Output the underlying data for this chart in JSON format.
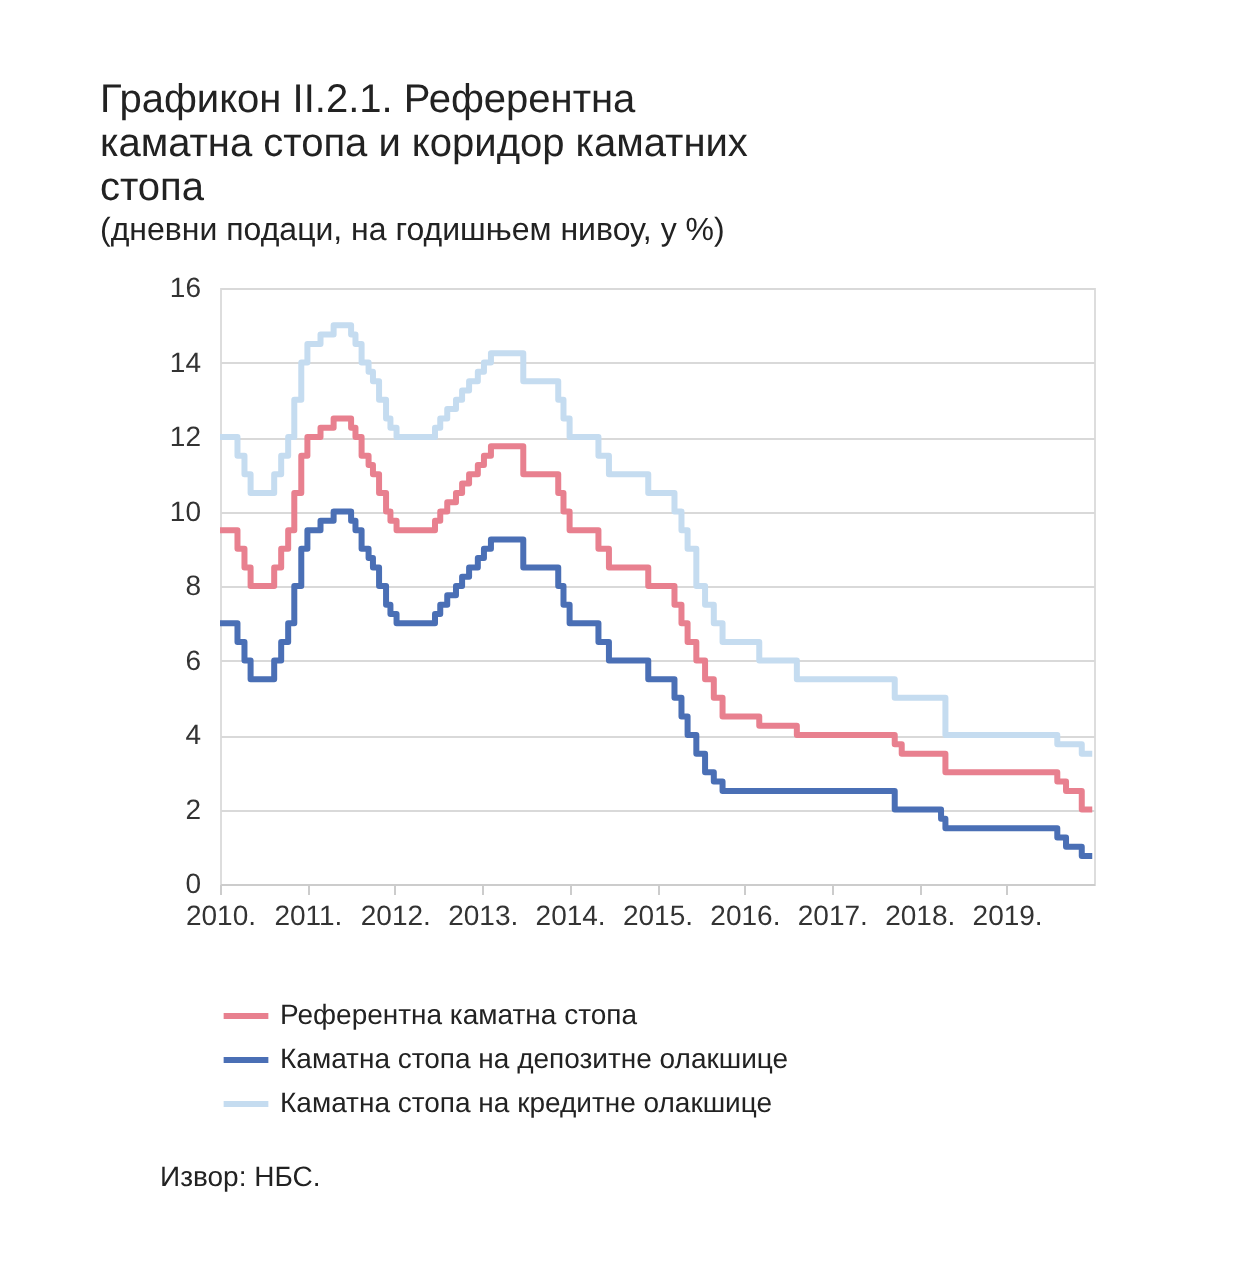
{
  "chart_data": {
    "type": "step",
    "title": "Графикон II.2.1. Референтна каматна стопа и коридор каматних стопа",
    "subtitle": "(дневни подаци, на годишњем нивоу, у %)",
    "x": [
      2010.0,
      2010.2,
      2010.28,
      2010.35,
      2010.62,
      2010.7,
      2010.78,
      2010.85,
      2010.93,
      2011.0,
      2011.15,
      2011.3,
      2011.5,
      2011.55,
      2011.62,
      2011.7,
      2011.75,
      2011.82,
      2011.9,
      2011.95,
      2012.02,
      2012.46,
      2012.52,
      2012.6,
      2012.7,
      2012.77,
      2012.85,
      2012.95,
      2013.02,
      2013.1,
      2013.47,
      2013.87,
      2013.93,
      2014.0,
      2014.33,
      2014.45,
      2014.9,
      2015.2,
      2015.28,
      2015.35,
      2015.45,
      2015.55,
      2015.65,
      2015.75,
      2016.17,
      2016.6,
      2017.72,
      2017.8,
      2018.25,
      2018.3,
      2019.58,
      2019.68,
      2019.86,
      2019.98
    ],
    "series": [
      {
        "name": "Референтна каматна стопа",
        "color": "#e8808f",
        "values": [
          9.5,
          9.0,
          8.5,
          8.0,
          8.5,
          9.0,
          9.5,
          10.5,
          11.5,
          12.0,
          12.25,
          12.5,
          12.25,
          12.0,
          11.5,
          11.25,
          11.0,
          10.5,
          10.0,
          9.75,
          9.5,
          9.75,
          10.0,
          10.25,
          10.5,
          10.75,
          11.0,
          11.25,
          11.5,
          11.75,
          11.0,
          10.5,
          10.0,
          9.5,
          9.0,
          8.5,
          8.0,
          7.5,
          7.0,
          6.5,
          6.0,
          5.5,
          5.0,
          4.5,
          4.25,
          4.0,
          3.75,
          3.5,
          3.5,
          3.0,
          2.75,
          2.5,
          2.0,
          2.0
        ]
      },
      {
        "name": "Каматна стопа на депозитне олакшице",
        "color": "#4a6fb5",
        "values": [
          7.0,
          6.5,
          6.0,
          5.5,
          6.0,
          6.5,
          7.0,
          8.0,
          9.0,
          9.5,
          9.75,
          10.0,
          9.75,
          9.5,
          9.0,
          8.75,
          8.5,
          8.0,
          7.5,
          7.25,
          7.0,
          7.25,
          7.5,
          7.75,
          8.0,
          8.25,
          8.5,
          8.75,
          9.0,
          9.25,
          8.5,
          8.0,
          7.5,
          7.0,
          6.5,
          6.0,
          5.5,
          5.0,
          4.5,
          4.0,
          3.5,
          3.0,
          2.75,
          2.5,
          2.5,
          2.5,
          2.0,
          2.0,
          1.75,
          1.5,
          1.25,
          1.0,
          0.75,
          0.75
        ]
      },
      {
        "name": "Каматна стопа на кредитне олакшице",
        "color": "#c5dcf0",
        "values": [
          12.0,
          11.5,
          11.0,
          10.5,
          11.0,
          11.5,
          12.0,
          13.0,
          14.0,
          14.5,
          14.75,
          15.0,
          14.75,
          14.5,
          14.0,
          13.75,
          13.5,
          13.0,
          12.5,
          12.25,
          12.0,
          12.25,
          12.5,
          12.75,
          13.0,
          13.25,
          13.5,
          13.75,
          14.0,
          14.25,
          13.5,
          13.0,
          12.5,
          12.0,
          11.5,
          11.0,
          10.5,
          10.0,
          9.5,
          9.0,
          8.0,
          7.5,
          7.0,
          6.5,
          6.0,
          5.5,
          5.0,
          5.0,
          5.0,
          4.0,
          3.75,
          3.75,
          3.5,
          3.5
        ]
      }
    ],
    "xlim": [
      2010,
      2020
    ],
    "xticks": [
      {
        "value": 2010,
        "label": "2010."
      },
      {
        "value": 2011,
        "label": "2011."
      },
      {
        "value": 2012,
        "label": "2012."
      },
      {
        "value": 2013,
        "label": "2013."
      },
      {
        "value": 2014,
        "label": "2014."
      },
      {
        "value": 2015,
        "label": "2015."
      },
      {
        "value": 2016,
        "label": "2016."
      },
      {
        "value": 2017,
        "label": "2017."
      },
      {
        "value": 2018,
        "label": "2018."
      },
      {
        "value": 2019,
        "label": "2019."
      }
    ],
    "ylim": [
      0,
      16
    ],
    "yticks": [
      0,
      2,
      4,
      6,
      8,
      10,
      12,
      14,
      16
    ],
    "grid": "y",
    "legend": "bottom left",
    "line_style": "solid",
    "annotations": [
      "Извор: НБС."
    ]
  }
}
